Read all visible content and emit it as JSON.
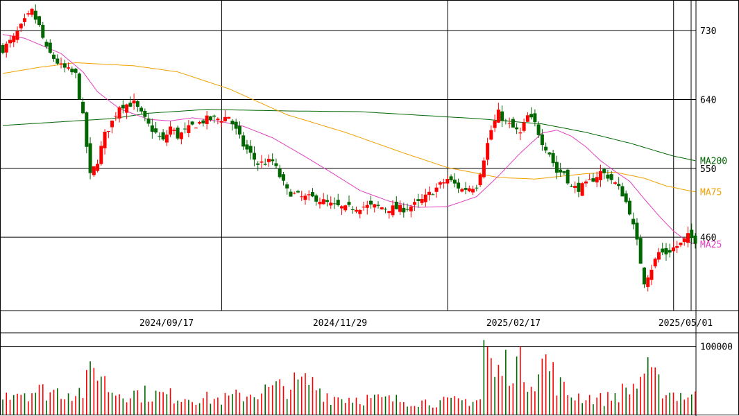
{
  "chart_data": [
    {
      "type": "candlestick",
      "title": "",
      "price_axis": {
        "ticks": [
          460,
          550,
          640,
          730
        ],
        "tick_labels": [
          "460",
          "550",
          "640",
          "730"
        ],
        "ylim": [
          364,
          770
        ]
      },
      "date_axis": {
        "tick_labels": [
          "2024/09/17",
          "2024/11/29",
          "2025/02/17",
          "2025/05/01"
        ]
      },
      "colors": {
        "up": "#ff0000",
        "down": "#006600",
        "ma25": "#e040c0",
        "ma75": "#f0a000",
        "ma200": "#006600",
        "grid": "#000000"
      },
      "legend": [
        {
          "label": "MA200",
          "color": "#006600"
        },
        {
          "label": "MA75",
          "color": "#f0a000"
        },
        {
          "label": "MA25",
          "color": "#e040c0"
        }
      ],
      "anchors": [
        {
          "i": 0,
          "c": 706,
          "ma25": 725,
          "ma75": 674,
          "ma200": 606
        },
        {
          "i": 3,
          "c": 720
        },
        {
          "i": 6,
          "c": 742,
          "ma25": 720
        },
        {
          "i": 8,
          "c": 755
        },
        {
          "i": 10,
          "c": 735,
          "ma25": 712,
          "ma75": 682
        },
        {
          "i": 12,
          "c": 705
        },
        {
          "i": 16,
          "c": 683,
          "ma25": 700
        },
        {
          "i": 20,
          "c": 672,
          "ma75": 688
        },
        {
          "i": 22,
          "c": 617,
          "ma25": 676
        },
        {
          "i": 24,
          "c": 540
        },
        {
          "i": 26,
          "c": 560,
          "ma25": 650
        },
        {
          "i": 28,
          "c": 594
        },
        {
          "i": 30,
          "c": 611,
          "ma200": 615
        },
        {
          "i": 32,
          "c": 632,
          "ma25": 628
        },
        {
          "i": 36,
          "c": 635,
          "ma75": 684
        },
        {
          "i": 40,
          "c": 606,
          "ma25": 614,
          "ma200": 622
        },
        {
          "i": 44,
          "c": 585
        },
        {
          "i": 46,
          "c": 604,
          "ma25": 612
        },
        {
          "i": 48,
          "c": 592,
          "ma75": 676
        },
        {
          "i": 52,
          "c": 605,
          "ma25": 616
        },
        {
          "i": 56,
          "c": 614,
          "ma200": 627
        },
        {
          "i": 60,
          "c": 615,
          "ma25": 611
        },
        {
          "i": 62,
          "c": 618,
          "ma75": 654
        },
        {
          "i": 66,
          "c": 580,
          "ma25": 605
        },
        {
          "i": 70,
          "c": 556
        },
        {
          "i": 74,
          "c": 559,
          "ma25": 590
        },
        {
          "i": 78,
          "c": 520,
          "ma75": 620,
          "ma200": 625
        },
        {
          "i": 82,
          "c": 512,
          "ma25": 568
        },
        {
          "i": 86,
          "c": 511
        },
        {
          "i": 90,
          "c": 502,
          "ma25": 545
        },
        {
          "i": 94,
          "c": 497,
          "ma75": 597
        },
        {
          "i": 98,
          "c": 500,
          "ma25": 521,
          "ma200": 624
        },
        {
          "i": 102,
          "c": 500
        },
        {
          "i": 106,
          "c": 498,
          "ma25": 507
        },
        {
          "i": 110,
          "c": 497,
          "ma75": 570
        },
        {
          "i": 114,
          "c": 504,
          "ma25": 499
        },
        {
          "i": 118,
          "c": 520
        },
        {
          "i": 122,
          "c": 536,
          "ma25": 500,
          "ma75": 551
        },
        {
          "i": 126,
          "c": 522
        },
        {
          "i": 130,
          "c": 528,
          "ma25": 513,
          "ma200": 615
        },
        {
          "i": 134,
          "c": 600
        },
        {
          "i": 136,
          "c": 622,
          "ma25": 540,
          "ma75": 538
        },
        {
          "i": 138,
          "c": 610
        },
        {
          "i": 142,
          "c": 595,
          "ma25": 570
        },
        {
          "i": 144,
          "c": 618
        },
        {
          "i": 146,
          "c": 608,
          "ma75": 536
        },
        {
          "i": 148,
          "c": 585,
          "ma25": 596,
          "ma200": 608
        },
        {
          "i": 150,
          "c": 570
        },
        {
          "i": 152,
          "c": 545,
          "ma25": 600
        },
        {
          "i": 154,
          "c": 545,
          "ma75": 540
        },
        {
          "i": 156,
          "c": 525,
          "ma25": 592
        },
        {
          "i": 158,
          "c": 524
        },
        {
          "i": 160,
          "c": 528,
          "ma25": 578,
          "ma75": 543,
          "ma200": 597
        },
        {
          "i": 164,
          "c": 545,
          "ma25": 560
        },
        {
          "i": 166,
          "c": 540
        },
        {
          "i": 168,
          "c": 530,
          "ma25": 546,
          "ma75": 545
        },
        {
          "i": 170,
          "c": 517
        },
        {
          "i": 172,
          "c": 494,
          "ma25": 533,
          "ma200": 583
        },
        {
          "i": 174,
          "c": 453
        },
        {
          "i": 176,
          "c": 402,
          "ma25": 510,
          "ma75": 537
        },
        {
          "i": 178,
          "c": 420
        },
        {
          "i": 180,
          "c": 440,
          "ma25": 488
        },
        {
          "i": 182,
          "c": 439,
          "ma75": 527
        },
        {
          "i": 184,
          "c": 446,
          "ma25": 468,
          "ma200": 566
        },
        {
          "i": 186,
          "c": 451
        },
        {
          "i": 188,
          "c": 461,
          "ma25": 454,
          "ma75": 521
        },
        {
          "i": 190,
          "c": 456,
          "ma25": 451,
          "ma200": 560
        }
      ]
    },
    {
      "type": "bar",
      "title": "",
      "volume_axis": {
        "ticks": [
          100000
        ],
        "tick_labels": [
          "100000"
        ],
        "ylim": [
          0,
          120000
        ]
      },
      "anchors": [
        {
          "i": 0,
          "v": 35000
        },
        {
          "i": 22,
          "v": 34000
        },
        {
          "i": 24,
          "v": 58000
        },
        {
          "i": 26,
          "v": 72000
        },
        {
          "i": 28,
          "v": 48000
        },
        {
          "i": 30,
          "v": 34000
        },
        {
          "i": 60,
          "v": 22000
        },
        {
          "i": 84,
          "v": 48000
        },
        {
          "i": 90,
          "v": 26000
        },
        {
          "i": 120,
          "v": 18000
        },
        {
          "i": 131,
          "v": 22000
        },
        {
          "i": 132,
          "v": 108000
        },
        {
          "i": 133,
          "v": 92000
        },
        {
          "i": 135,
          "v": 55000
        },
        {
          "i": 138,
          "v": 72000
        },
        {
          "i": 140,
          "v": 78000
        },
        {
          "i": 142,
          "v": 70000
        },
        {
          "i": 145,
          "v": 55000
        },
        {
          "i": 147,
          "v": 62000
        },
        {
          "i": 149,
          "v": 80000
        },
        {
          "i": 152,
          "v": 48000
        },
        {
          "i": 155,
          "v": 30000
        },
        {
          "i": 165,
          "v": 22000
        },
        {
          "i": 172,
          "v": 38000
        },
        {
          "i": 174,
          "v": 44000
        },
        {
          "i": 176,
          "v": 65000
        },
        {
          "i": 178,
          "v": 54000
        },
        {
          "i": 180,
          "v": 44000
        },
        {
          "i": 183,
          "v": 32000
        },
        {
          "i": 190,
          "v": 26000
        }
      ]
    }
  ]
}
